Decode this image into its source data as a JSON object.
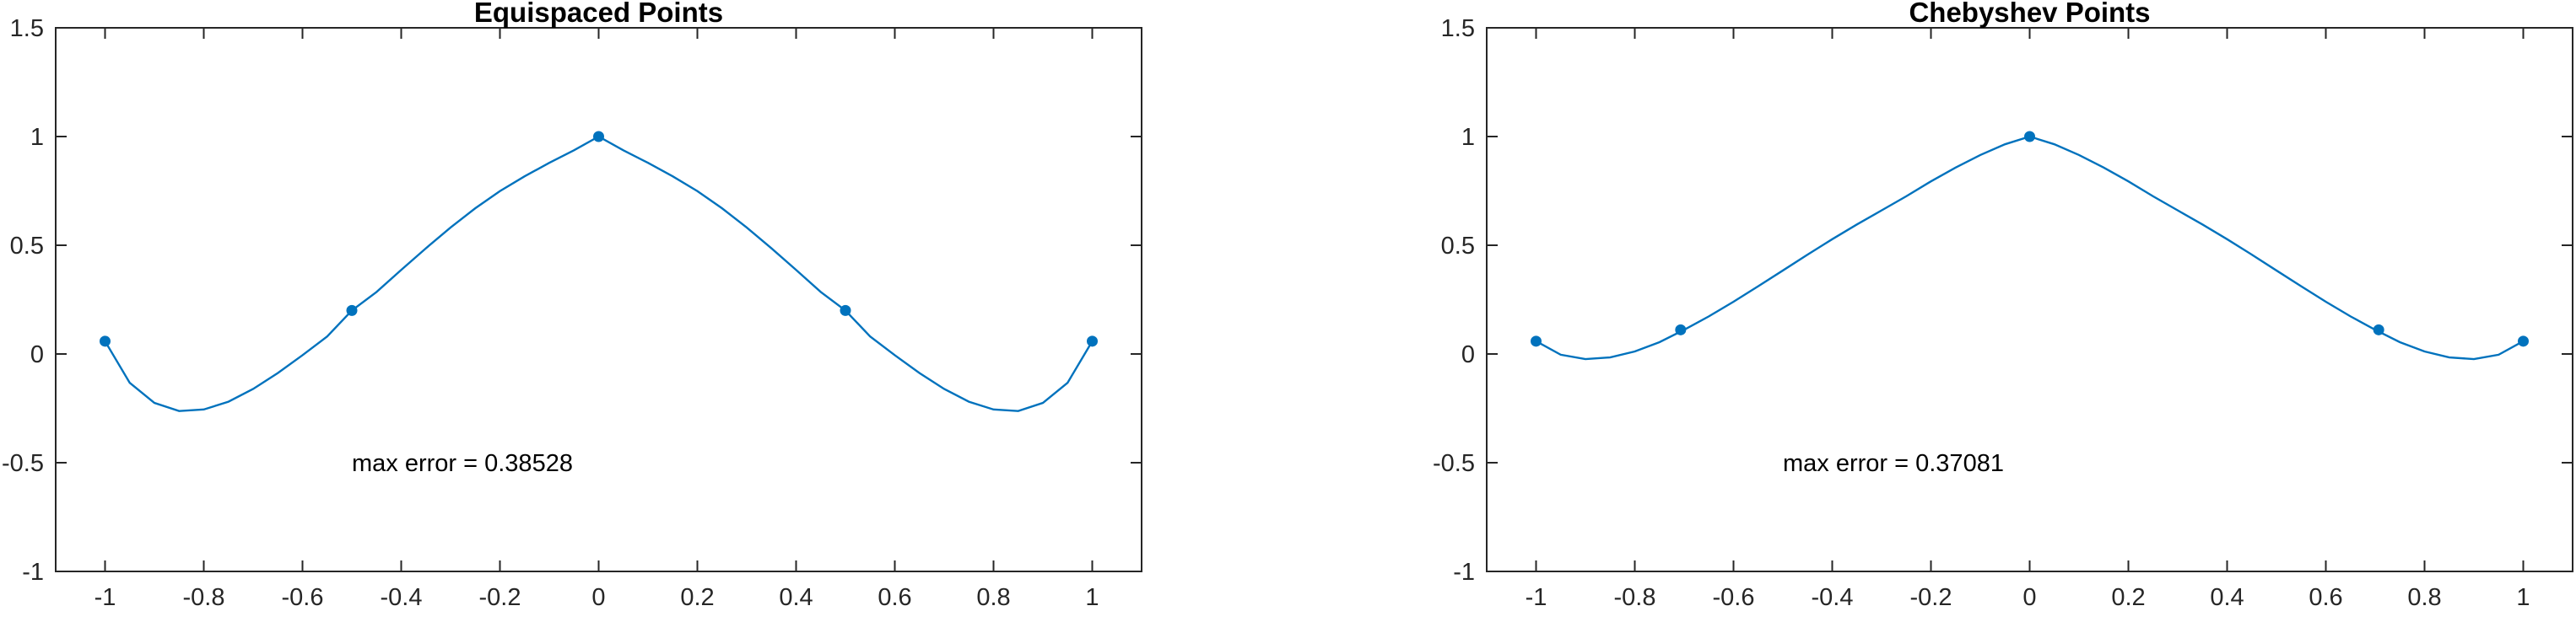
{
  "chart_data": [
    {
      "type": "line",
      "title": "Equispaced Points",
      "xlabel": "",
      "ylabel": "",
      "xlim": [
        -1.1,
        1.1
      ],
      "ylim": [
        -1,
        1.5
      ],
      "xticks": [
        -1,
        -0.8,
        -0.6,
        -0.4,
        -0.2,
        0,
        0.2,
        0.4,
        0.6,
        0.8,
        1
      ],
      "xtick_labels": [
        "-1",
        "-0.8",
        "-0.6",
        "-0.4",
        "-0.2",
        "0",
        "0.2",
        "0.4",
        "0.6",
        "0.8",
        "1"
      ],
      "yticks": [
        -1,
        -0.5,
        0,
        0.5,
        1,
        1.5
      ],
      "ytick_labels": [
        "-1",
        "-0.5",
        "0",
        "0.5",
        "1",
        "1.5"
      ],
      "grid": false,
      "color": "#0072BD",
      "annotation": {
        "text": "max error = 0.38528",
        "x": -0.5,
        "y": -0.5
      },
      "points": {
        "x": [
          -1,
          -0.5,
          0,
          0.5,
          1
        ],
        "y": [
          0.0588,
          0.2,
          1,
          0.2,
          0.0588
        ]
      },
      "curve": {
        "x": [
          -1,
          -0.95,
          -0.9,
          -0.85,
          -0.8,
          -0.75,
          -0.7,
          -0.65,
          -0.6,
          -0.55,
          -0.5,
          -0.45,
          -0.4,
          -0.35,
          -0.3,
          -0.25,
          -0.2,
          -0.15,
          -0.1,
          -0.05,
          0,
          0.05,
          0.1,
          0.15,
          0.2,
          0.25,
          0.3,
          0.35,
          0.4,
          0.45,
          0.5,
          0.55,
          0.6,
          0.65,
          0.7,
          0.75,
          0.8,
          0.85,
          0.9,
          0.95,
          1
        ],
        "y": [
          0.0588,
          -0.1325,
          -0.2248,
          -0.2623,
          -0.2553,
          -0.2194,
          -0.1608,
          -0.0876,
          -0.0057,
          0.0804,
          0.2,
          0.2852,
          0.3867,
          0.4861,
          0.5817,
          0.67,
          0.7491,
          0.8172,
          0.8789,
          0.9368,
          1,
          0.9368,
          0.8789,
          0.8172,
          0.7491,
          0.67,
          0.5817,
          0.4861,
          0.3867,
          0.2852,
          0.2,
          0.0804,
          -0.0057,
          -0.0876,
          -0.1608,
          -0.2194,
          -0.2553,
          -0.2623,
          -0.2248,
          -0.1325,
          0.0588
        ]
      }
    },
    {
      "type": "line",
      "title": "Chebyshev Points",
      "xlabel": "",
      "ylabel": "",
      "xlim": [
        -1.1,
        1.1
      ],
      "ylim": [
        -1,
        1.5
      ],
      "xticks": [
        -1,
        -0.8,
        -0.6,
        -0.4,
        -0.2,
        0,
        0.2,
        0.4,
        0.6,
        0.8,
        1
      ],
      "xtick_labels": [
        "-1",
        "-0.8",
        "-0.6",
        "-0.4",
        "-0.2",
        "0",
        "0.2",
        "0.4",
        "0.6",
        "0.8",
        "1"
      ],
      "yticks": [
        -1,
        -0.5,
        0,
        0.5,
        1,
        1.5
      ],
      "ytick_labels": [
        "-1",
        "-0.5",
        "0",
        "0.5",
        "1",
        "1.5"
      ],
      "grid": false,
      "color": "#0072BD",
      "annotation": {
        "text": "max error = 0.37081",
        "x": -0.5,
        "y": -0.5
      },
      "points": {
        "x": [
          -1,
          -0.7071,
          0,
          0.7071,
          1
        ],
        "y": [
          0.0588,
          0.1111,
          1,
          0.1111,
          0.0588
        ]
      },
      "curve": {
        "x": [
          -1,
          -0.95,
          -0.9,
          -0.85,
          -0.8,
          -0.75,
          -0.7,
          -0.65,
          -0.6,
          -0.55,
          -0.5,
          -0.45,
          -0.4,
          -0.35,
          -0.3,
          -0.25,
          -0.2,
          -0.15,
          -0.1,
          -0.05,
          0,
          0.05,
          0.1,
          0.15,
          0.2,
          0.25,
          0.3,
          0.35,
          0.4,
          0.45,
          0.5,
          0.55,
          0.6,
          0.65,
          0.7,
          0.75,
          0.8,
          0.85,
          0.9,
          0.95,
          1
        ],
        "y": [
          0.0588,
          -0.0035,
          -0.0236,
          -0.0156,
          0.0117,
          0.0543,
          0.1111,
          0.173,
          0.2403,
          0.3116,
          0.384,
          0.457,
          0.5278,
          0.5956,
          0.6603,
          0.7252,
          0.7939,
          0.8573,
          0.9151,
          0.9644,
          1,
          0.9644,
          0.9151,
          0.8573,
          0.7939,
          0.7252,
          0.6603,
          0.5956,
          0.5278,
          0.457,
          0.384,
          0.3116,
          0.2403,
          0.173,
          0.1111,
          0.0543,
          0.0117,
          -0.0156,
          -0.0236,
          -0.0035,
          0.0588
        ]
      }
    }
  ]
}
